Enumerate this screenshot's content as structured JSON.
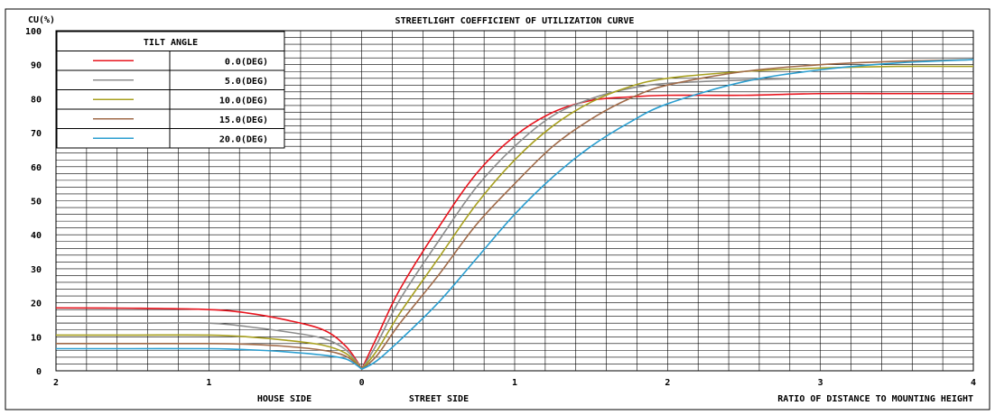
{
  "chart_data": {
    "type": "line",
    "title": "STREETLIGHT COEFFICIENT OF UTILIZATION CURVE",
    "ylabel": "CU(%)",
    "ylim": [
      0,
      100
    ],
    "yticks": [
      "0",
      "10",
      "20",
      "30",
      "40",
      "50",
      "60",
      "70",
      "80",
      "90",
      "100"
    ],
    "xlim": [
      -2,
      4
    ],
    "xticks": [
      {
        "value": -2,
        "label": "2"
      },
      {
        "value": -1,
        "label": "1"
      },
      {
        "value": 0,
        "label": "0"
      },
      {
        "value": 1,
        "label": "1"
      },
      {
        "value": 2,
        "label": "2"
      },
      {
        "value": 3,
        "label": "3"
      },
      {
        "value": 4,
        "label": "4"
      }
    ],
    "x_captions": {
      "house_side": "HOUSE SIDE",
      "street_side": "STREET SIDE",
      "xlabel": "RATIO OF DISTANCE TO MOUNTING HEIGHT"
    },
    "grid": true,
    "legend": {
      "title": "TILT ANGLE",
      "placement": "top-left"
    },
    "x": [
      -2,
      -1.5,
      -1,
      -0.75,
      -0.5,
      -0.25,
      -0.1,
      0,
      0.1,
      0.25,
      0.5,
      0.75,
      1,
      1.25,
      1.5,
      1.75,
      2,
      2.5,
      3,
      3.5,
      4
    ],
    "series": [
      {
        "name": "0.0(DEG)",
        "color": "#e8141e",
        "values": [
          18.5,
          18.4,
          18,
          17,
          15,
          12,
          7,
          0.5,
          10,
          24,
          42,
          58,
          69,
          76,
          79.5,
          80.5,
          81,
          81,
          81.5,
          81.5,
          81.5
        ]
      },
      {
        "name": "5.0(DEG)",
        "color": "#8c8c8c",
        "values": [
          14,
          14,
          14,
          13,
          11.5,
          9.5,
          6,
          0.5,
          8,
          21,
          38,
          54,
          66,
          75,
          80,
          83,
          84.5,
          85.5,
          86,
          86,
          86
        ]
      },
      {
        "name": "10.0(DEG)",
        "color": "#a8a020",
        "values": [
          10.5,
          10.5,
          10.5,
          10,
          9,
          7.5,
          5,
          0.5,
          6,
          17,
          33,
          49,
          62,
          72,
          79,
          83.5,
          86,
          88,
          89,
          89.5,
          89.5
        ]
      },
      {
        "name": "15.0(DEG)",
        "color": "#a06a48",
        "values": [
          8,
          8,
          8,
          7.8,
          7.2,
          6,
          4.2,
          0.5,
          4.5,
          14,
          28,
          43,
          55,
          66,
          74,
          80,
          84,
          88,
          90,
          91,
          91.5
        ]
      },
      {
        "name": "20.0(DEG)",
        "color": "#2a9ed0",
        "values": [
          6.5,
          6.5,
          6.5,
          6.2,
          5.6,
          4.6,
          3.4,
          0.5,
          3,
          9,
          20,
          33,
          46,
          57,
          66,
          73,
          78.5,
          85,
          88.5,
          90.5,
          91.5
        ]
      }
    ]
  }
}
